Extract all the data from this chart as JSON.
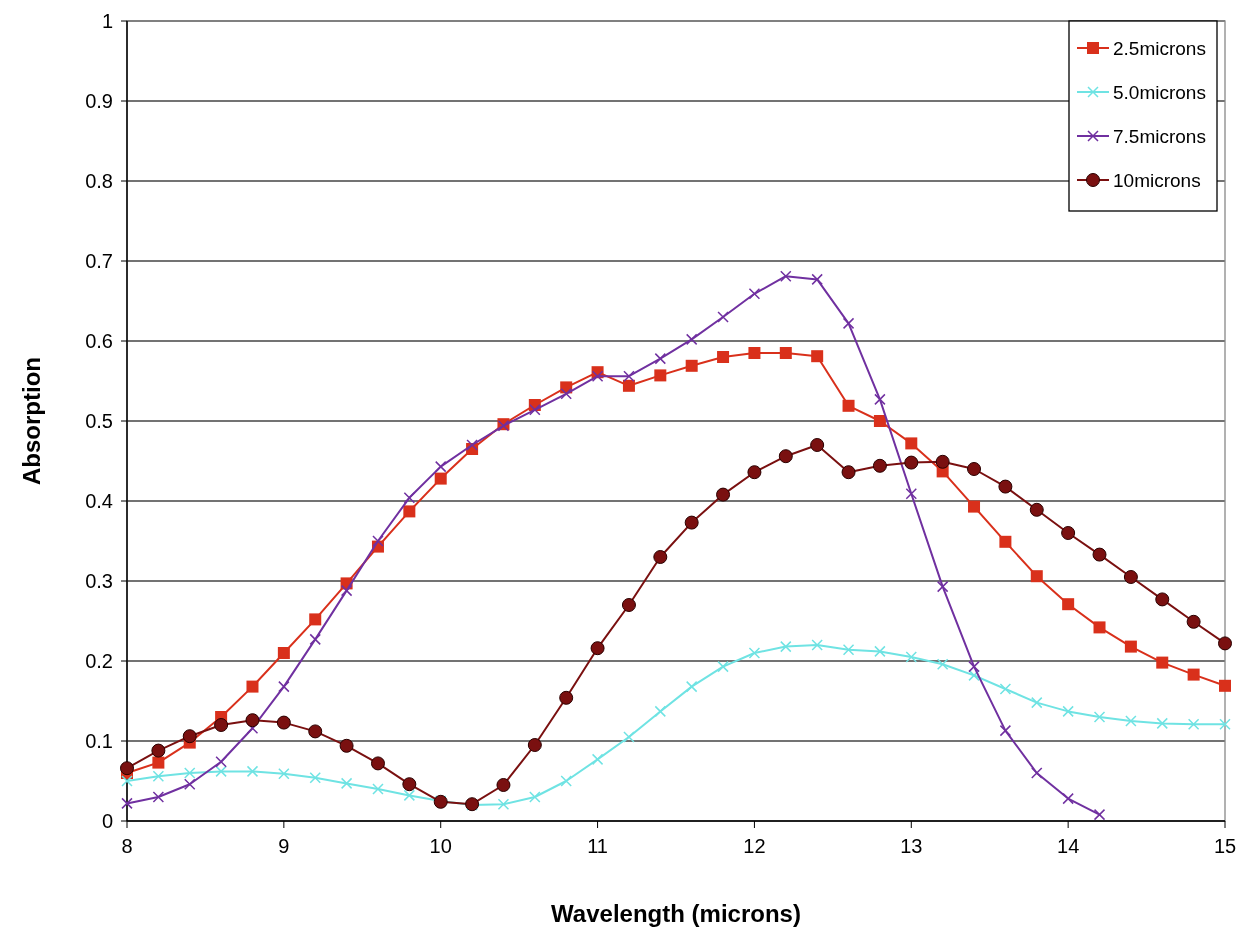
{
  "chart_data": {
    "type": "line",
    "xlabel": "Wavelength (microns)",
    "ylabel": "Absorption",
    "xlim": [
      8,
      15
    ],
    "xticks": [
      8,
      9,
      10,
      11,
      12,
      13,
      14,
      15
    ],
    "ylim": [
      0,
      1
    ],
    "yticks": [
      0,
      0.1,
      0.2,
      0.3,
      0.4,
      0.5,
      0.6,
      0.7,
      0.8,
      0.9,
      1
    ],
    "grid": "y",
    "legend": "top right",
    "x": [
      8,
      8.2,
      8.4,
      8.6,
      8.8,
      9,
      9.2,
      9.4,
      9.6,
      9.8,
      10,
      10.2,
      10.4,
      10.6,
      10.8,
      11,
      11.2,
      11.4,
      11.6,
      11.8,
      12,
      12.2,
      12.4,
      12.6,
      12.8,
      13,
      13.2,
      13.4,
      13.6,
      13.8,
      14,
      14.2,
      14.4,
      14.6,
      14.8,
      15
    ],
    "series": [
      {
        "name": "2.5microns",
        "color": "#d9301b",
        "marker": "square",
        "values": [
          0.06,
          0.073,
          0.098,
          0.13,
          0.168,
          0.21,
          0.252,
          0.297,
          0.343,
          0.387,
          0.428,
          0.465,
          0.496,
          0.52,
          0.542,
          0.561,
          0.544,
          0.557,
          0.569,
          0.58,
          0.585,
          0.585,
          0.581,
          0.519,
          0.5,
          0.472,
          0.437,
          0.393,
          0.349,
          0.306,
          0.271,
          0.242,
          0.218,
          0.198,
          0.183,
          0.169
        ]
      },
      {
        "name": "5.0microns",
        "color": "#6fe3e3",
        "marker": "cross",
        "values": [
          0.05,
          0.056,
          0.06,
          0.062,
          0.062,
          0.059,
          0.054,
          0.047,
          0.04,
          0.032,
          0.025,
          0.02,
          0.021,
          0.03,
          0.05,
          0.077,
          0.105,
          0.137,
          0.168,
          0.193,
          0.21,
          0.218,
          0.22,
          0.214,
          0.212,
          0.205,
          0.196,
          0.182,
          0.165,
          0.148,
          0.137,
          0.13,
          0.125,
          0.122,
          0.121,
          0.121
        ]
      },
      {
        "name": "7.5microns",
        "color": "#7030a0",
        "marker": "cross",
        "values": [
          0.022,
          0.03,
          0.046,
          0.074,
          0.116,
          0.168,
          0.227,
          0.288,
          0.35,
          0.404,
          0.443,
          0.47,
          0.494,
          0.514,
          0.534,
          0.556,
          0.556,
          0.578,
          0.602,
          0.63,
          0.659,
          0.681,
          0.677,
          0.622,
          0.527,
          0.409,
          0.293,
          0.193,
          0.113,
          0.06,
          0.028,
          0.008,
          null,
          null,
          null,
          null
        ]
      },
      {
        "name": "10microns",
        "color": "#7a1010",
        "marker": "circle",
        "values": [
          0.066,
          0.088,
          0.106,
          0.12,
          0.126,
          0.123,
          0.112,
          0.094,
          0.072,
          0.046,
          0.024,
          0.021,
          0.045,
          0.095,
          0.154,
          0.216,
          0.27,
          0.33,
          0.373,
          0.408,
          0.436,
          0.456,
          0.47,
          0.436,
          0.444,
          0.448,
          0.449,
          0.44,
          0.418,
          0.389,
          0.36,
          0.333,
          0.305,
          0.277,
          0.249,
          0.222
        ]
      }
    ]
  }
}
